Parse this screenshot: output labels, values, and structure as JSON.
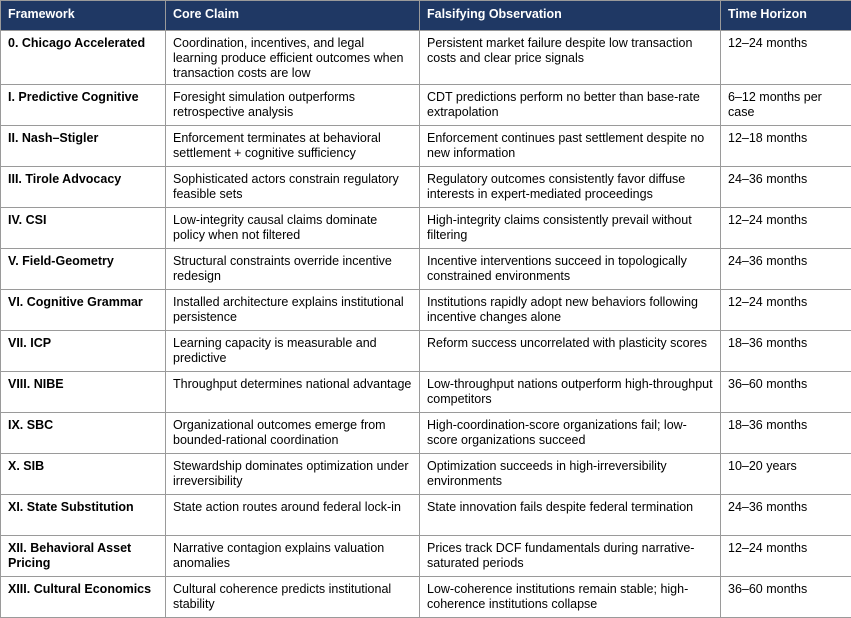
{
  "table": {
    "header": [
      "Framework",
      "Core Claim",
      "Falsifying Observation",
      "Time Horizon"
    ],
    "rows": [
      [
        "0. Chicago Accelerated",
        "Coordination, incentives, and legal learning produce efficient outcomes when transaction costs are low",
        "Persistent market failure despite low transaction costs and clear price signals",
        "12–24 months"
      ],
      [
        "I. Predictive Cognitive",
        "Foresight simulation outperforms retrospective analysis",
        "CDT predictions perform no better than base-rate extrapolation",
        "6–12 months per case"
      ],
      [
        "II. Nash–Stigler",
        "Enforcement terminates at behavioral settlement + cognitive sufficiency",
        "Enforcement continues past settlement despite no new information",
        "12–18 months"
      ],
      [
        "III. Tirole Advocacy",
        "Sophisticated actors constrain regulatory feasible sets",
        "Regulatory outcomes consistently favor diffuse interests in expert-mediated proceedings",
        "24–36 months"
      ],
      [
        "IV. CSI",
        "Low-integrity causal claims dominate policy when not filtered",
        "High-integrity claims consistently prevail without filtering",
        "12–24 months"
      ],
      [
        "V. Field-Geometry",
        "Structural constraints override incentive redesign",
        "Incentive interventions succeed in topologically constrained environments",
        "24–36 months"
      ],
      [
        "VI. Cognitive Grammar",
        "Installed architecture explains institutional persistence",
        "Institutions rapidly adopt new behaviors following incentive changes alone",
        "12–24 months"
      ],
      [
        "VII. ICP",
        "Learning capacity is measurable and predictive",
        "Reform success uncorrelated with plasticity scores",
        "18–36 months"
      ],
      [
        "VIII. NIBE",
        "Throughput determines national advantage",
        "Low-throughput nations outperform high-throughput competitors",
        "36–60 months"
      ],
      [
        "IX. SBC",
        "Organizational outcomes emerge from bounded-rational coordination",
        "High-coordination-score organizations fail; low-score organizations succeed",
        "18–36 months"
      ],
      [
        "X. SIB",
        "Stewardship dominates optimization under irreversibility",
        "Optimization succeeds in high-irreversibility environments",
        "10–20 years"
      ],
      [
        "XI. State Substitution",
        "State action routes around federal lock-in",
        "State innovation fails despite federal termination",
        "24–36 months"
      ],
      [
        "XII. Behavioral Asset Pricing",
        "Narrative contagion explains valuation anomalies",
        "Prices track DCF fundamentals during narrative-saturated periods",
        "12–24 months"
      ],
      [
        "XIII. Cultural Economics",
        "Cultural coherence predicts institutional stability",
        "Low-coherence institutions remain stable; high-coherence institutions collapse",
        "36–60 months"
      ]
    ]
  }
}
